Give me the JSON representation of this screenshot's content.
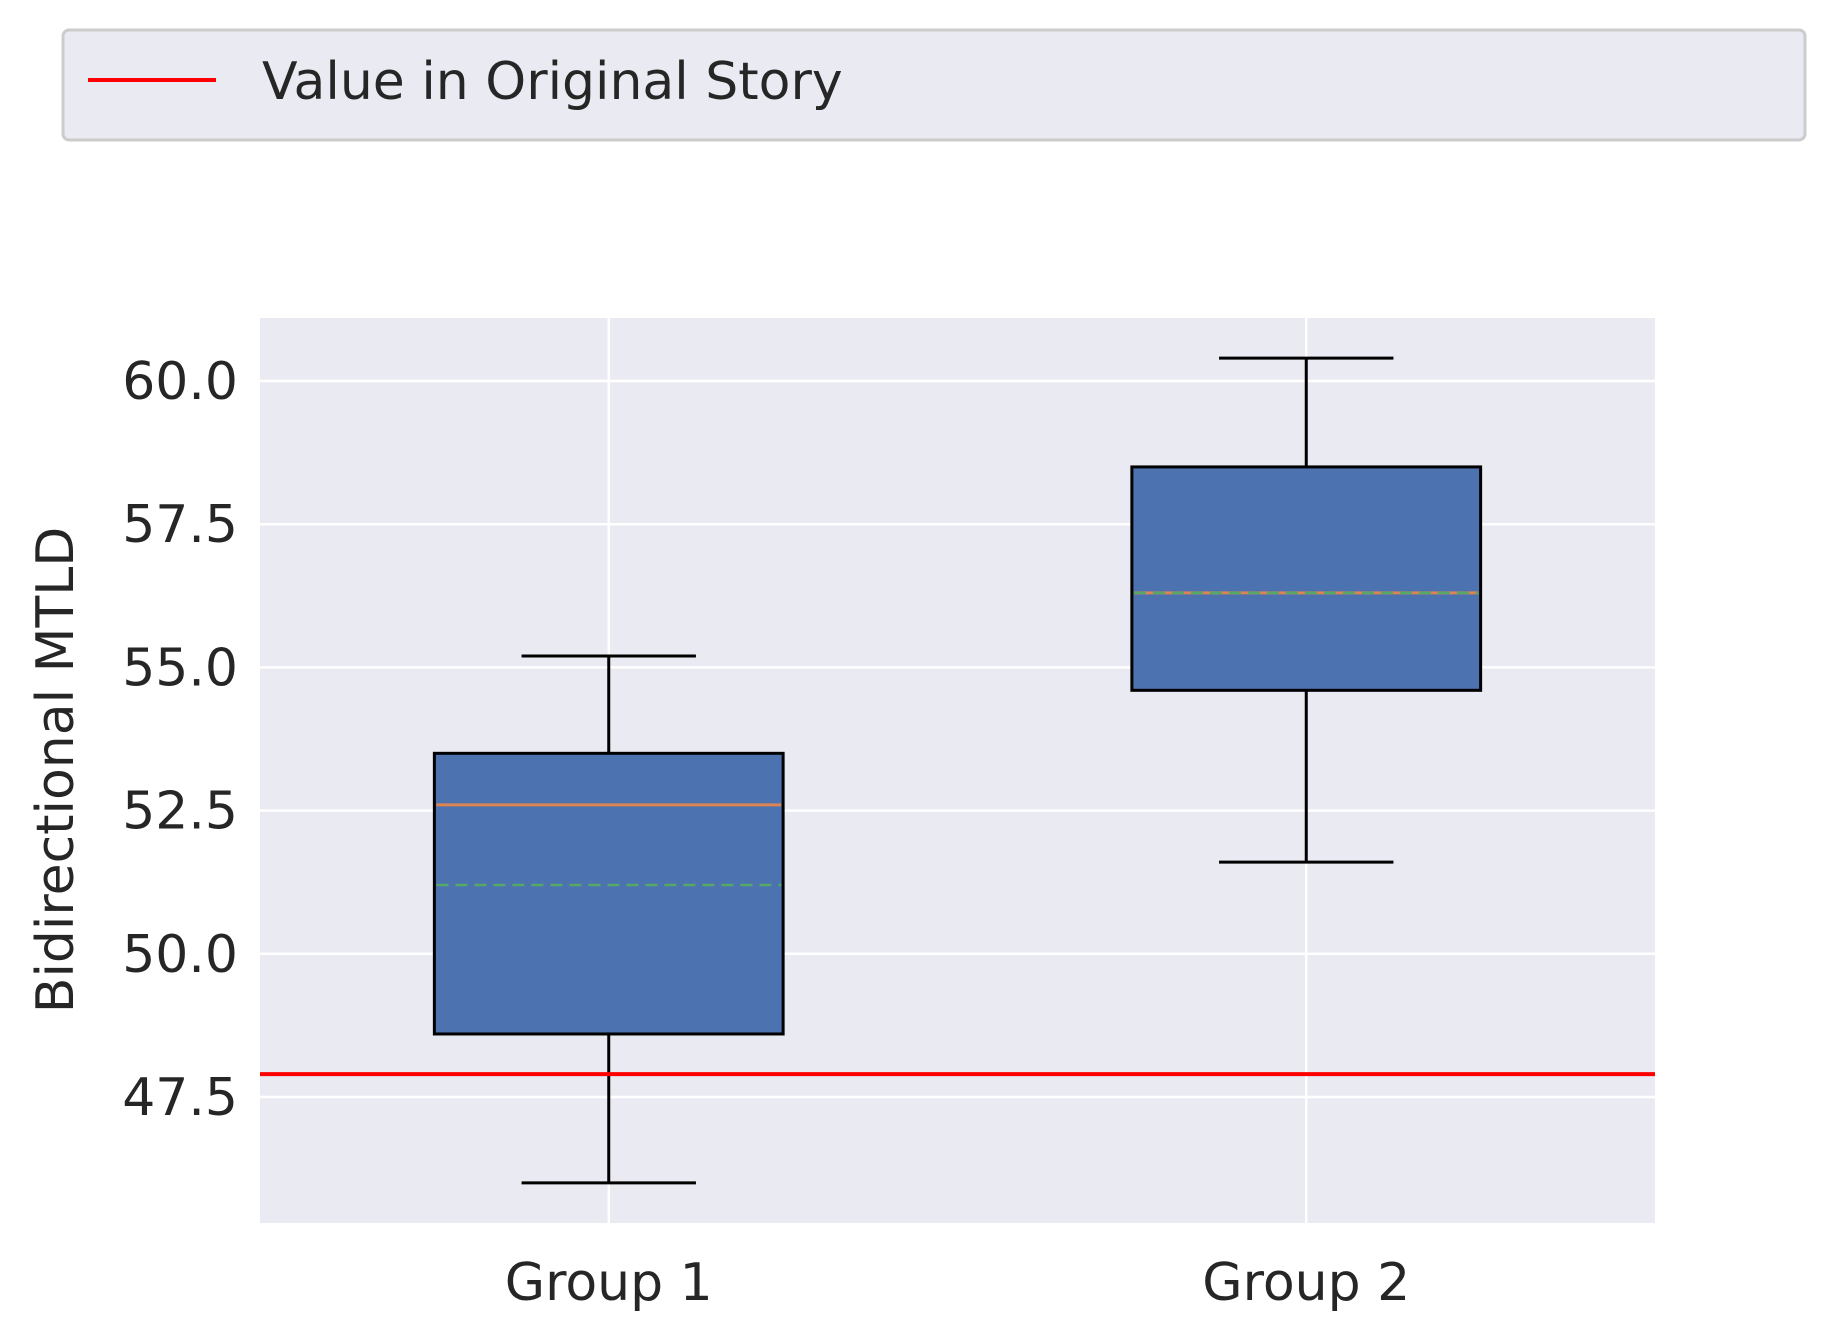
{
  "chart_data": {
    "type": "box",
    "title": "",
    "ylabel": "Bidirectional MTLD",
    "xlabel": "",
    "categories": [
      "Group 1",
      "Group 2"
    ],
    "ylim": [
      45.3,
      61.1
    ],
    "yticks": [
      "47.5",
      "50.0",
      "52.5",
      "55.0",
      "57.5",
      "60.0"
    ],
    "grid": true,
    "legend": {
      "position": "top",
      "entries": [
        {
          "label": "Value in Original Story",
          "color": "#ff0000"
        }
      ]
    },
    "boxes": [
      {
        "category": "Group 1",
        "whisker_low": 46.0,
        "q1": 48.6,
        "median": 52.6,
        "mean": 51.2,
        "q3": 53.5,
        "whisker_high": 55.2
      },
      {
        "category": "Group 2",
        "whisker_low": 51.6,
        "q1": 54.6,
        "median": 56.3,
        "mean": 56.3,
        "q3": 58.5,
        "whisker_high": 60.4
      }
    ],
    "reference_line": {
      "label": "Value in Original Story",
      "value": 47.9,
      "color": "#ff0000"
    },
    "colors": {
      "box_fill": "#4c72b0",
      "median": "#dd8452",
      "mean": "#55a868",
      "plot_bg": "#eaeaf2",
      "grid": "#ffffff"
    }
  }
}
